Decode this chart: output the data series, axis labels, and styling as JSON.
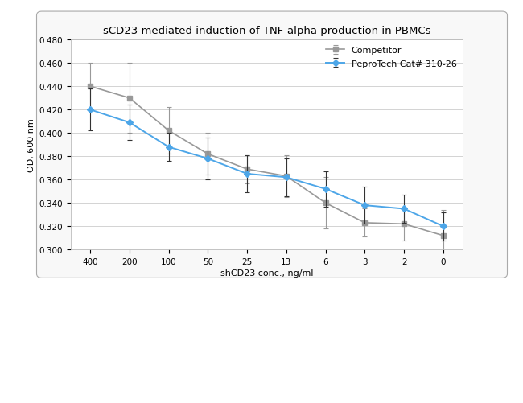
{
  "title": "sCD23 mediated induction of TNF-alpha production in PBMCs",
  "xlabel": "shCD23 conc., ng/ml",
  "ylabel": "OD, 600 nm",
  "x_labels": [
    "400",
    "200",
    "100",
    "50",
    "25",
    "13",
    "6",
    "3",
    "2",
    "0"
  ],
  "pepro_y": [
    0.42,
    0.409,
    0.388,
    0.378,
    0.365,
    0.362,
    0.352,
    0.338,
    0.335,
    0.32
  ],
  "pepro_yerr": [
    0.018,
    0.015,
    0.012,
    0.018,
    0.016,
    0.016,
    0.015,
    0.016,
    0.012,
    0.012
  ],
  "comp_y": [
    0.44,
    0.43,
    0.402,
    0.382,
    0.369,
    0.363,
    0.34,
    0.323,
    0.322,
    0.312
  ],
  "comp_yerr": [
    0.02,
    0.03,
    0.02,
    0.018,
    0.012,
    0.018,
    0.022,
    0.012,
    0.014,
    0.022
  ],
  "pepro_color": "#4da6e8",
  "comp_color": "#999999",
  "ylim": [
    0.3,
    0.48
  ],
  "yticks": [
    0.3,
    0.32,
    0.34,
    0.36,
    0.38,
    0.4,
    0.42,
    0.44,
    0.46,
    0.48
  ],
  "legend_pepro": "PeproTech Cat# 310-26",
  "legend_comp": "Competitor",
  "outer_bg": "#ffffff",
  "plot_bg_color": "#ffffff",
  "frame_bg": "#f0f0f0",
  "grid_color": "#cccccc",
  "title_fontsize": 9.5,
  "axis_label_fontsize": 8,
  "tick_fontsize": 7.5,
  "legend_fontsize": 8
}
